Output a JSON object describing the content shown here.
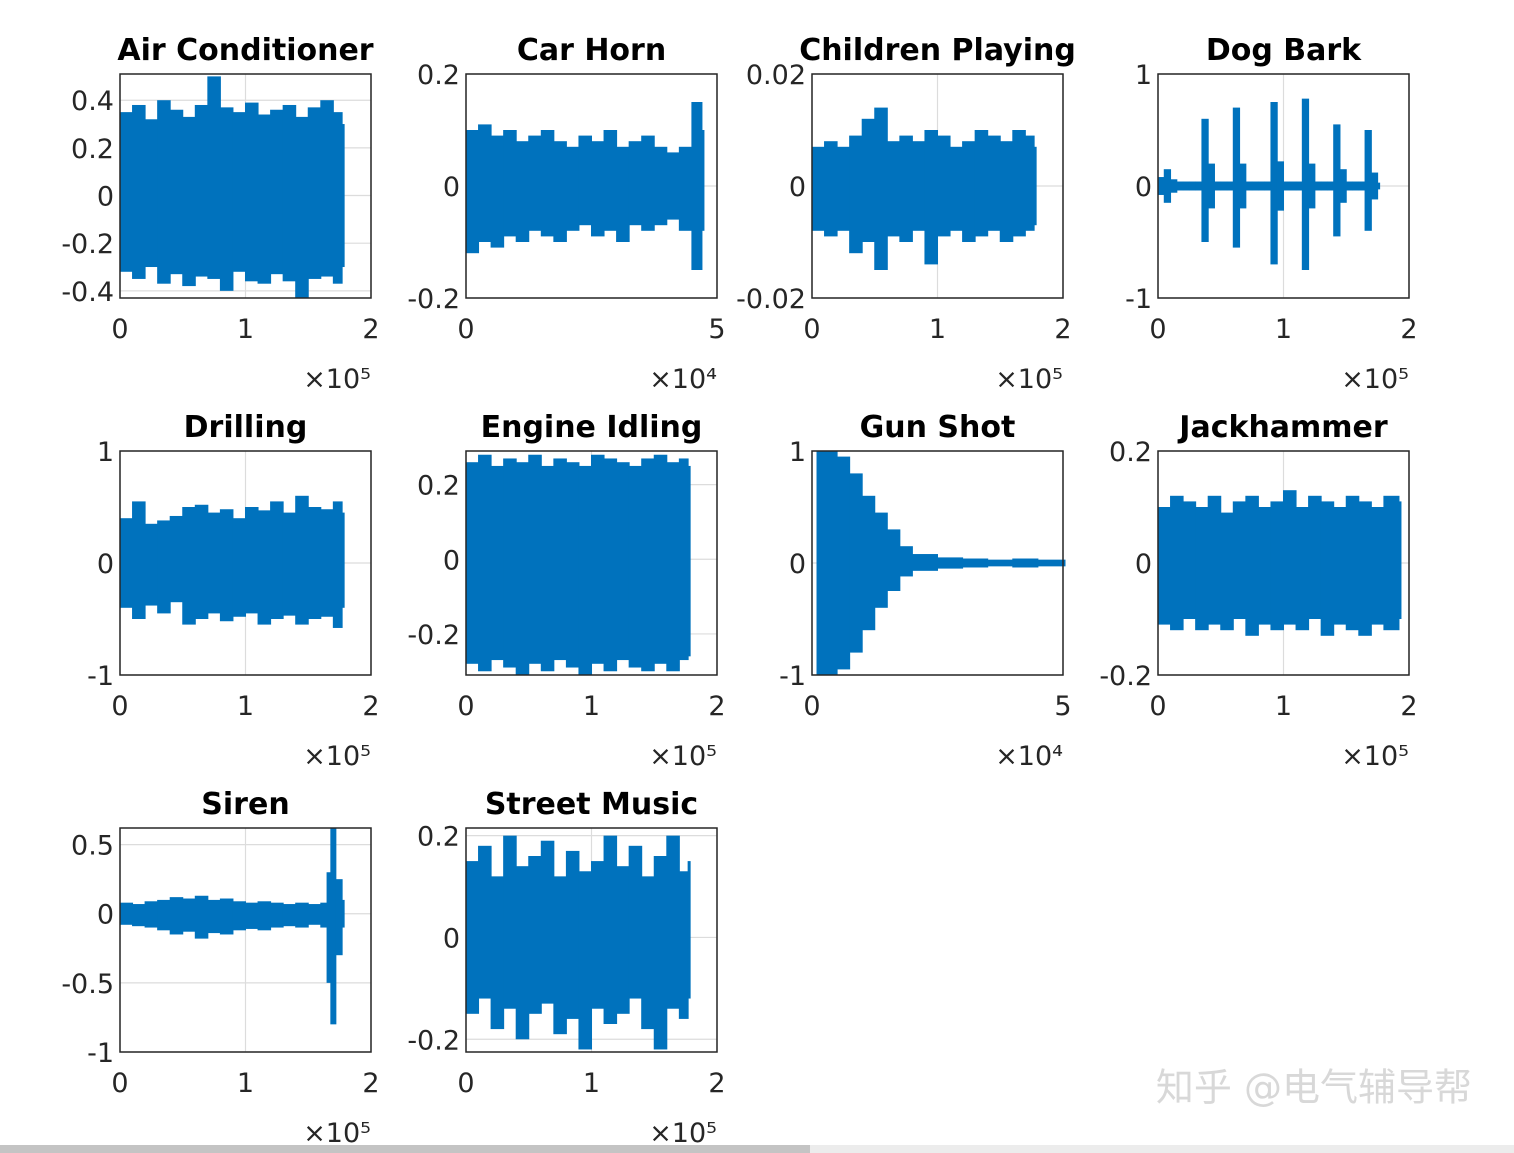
{
  "chart_data": [
    {
      "type": "waveform",
      "title": "Air Conditioner",
      "color": "#0072bd",
      "grid": true,
      "x_multiplier": "×10⁵",
      "xlim": [
        0,
        2
      ],
      "xticks": [
        0,
        1,
        2
      ],
      "ylim": [
        -0.43,
        0.51
      ],
      "yticks": [
        -0.4,
        -0.2,
        0,
        0.2,
        0.4
      ],
      "x": [
        0,
        0.1,
        0.2,
        0.3,
        0.4,
        0.5,
        0.6,
        0.7,
        0.8,
        0.9,
        1,
        1.1,
        1.2,
        1.3,
        1.4,
        1.5,
        1.6,
        1.7,
        1.77
      ],
      "series": [
        {
          "color": "#0072bd",
          "values": [
            0.35,
            0.38,
            0.32,
            0.4,
            0.36,
            0.33,
            0.38,
            0.5,
            0.37,
            0.35,
            0.39,
            0.34,
            0.36,
            0.38,
            0.33,
            0.37,
            0.4,
            0.35,
            0.3
          ]
        },
        {
          "color": "#0072bd",
          "values": [
            -0.32,
            -0.35,
            -0.3,
            -0.37,
            -0.33,
            -0.38,
            -0.34,
            -0.35,
            -0.4,
            -0.32,
            -0.36,
            -0.37,
            -0.33,
            -0.36,
            -0.43,
            -0.35,
            -0.34,
            -0.37,
            -0.3
          ]
        }
      ]
    },
    {
      "type": "waveform",
      "title": "Car Horn",
      "color": "#0072bd",
      "grid": true,
      "x_multiplier": "×10⁴",
      "xlim": [
        0,
        5
      ],
      "xticks": [
        0,
        5
      ],
      "ylim": [
        -0.2,
        0.2
      ],
      "yticks": [
        -0.2,
        0,
        0.2
      ],
      "x": [
        0,
        0.25,
        0.5,
        0.75,
        1,
        1.25,
        1.5,
        1.75,
        2,
        2.25,
        2.5,
        2.75,
        3,
        3.25,
        3.5,
        3.75,
        4,
        4.25,
        4.5,
        4.7
      ],
      "series": [
        {
          "color": "#0072bd",
          "values": [
            0.1,
            0.11,
            0.09,
            0.1,
            0.08,
            0.09,
            0.1,
            0.08,
            0.07,
            0.09,
            0.08,
            0.1,
            0.07,
            0.08,
            0.09,
            0.07,
            0.06,
            0.07,
            0.15,
            0.1
          ]
        },
        {
          "color": "#0072bd",
          "values": [
            -0.12,
            -0.1,
            -0.11,
            -0.09,
            -0.1,
            -0.08,
            -0.09,
            -0.1,
            -0.08,
            -0.07,
            -0.09,
            -0.08,
            -0.1,
            -0.07,
            -0.08,
            -0.07,
            -0.06,
            -0.08,
            -0.15,
            -0.08
          ]
        }
      ]
    },
    {
      "type": "waveform",
      "title": "Children Playing",
      "color": "#0072bd",
      "grid": true,
      "x_multiplier": "×10⁵",
      "xlim": [
        0,
        2
      ],
      "xticks": [
        0,
        1,
        2
      ],
      "ylim": [
        -0.02,
        0.02
      ],
      "yticks": [
        -0.02,
        0,
        0.02
      ],
      "x": [
        0,
        0.1,
        0.2,
        0.3,
        0.4,
        0.5,
        0.6,
        0.7,
        0.8,
        0.9,
        1,
        1.1,
        1.2,
        1.3,
        1.4,
        1.5,
        1.6,
        1.7,
        1.77
      ],
      "series": [
        {
          "color": "#0072bd",
          "values": [
            0.007,
            0.008,
            0.007,
            0.009,
            0.012,
            0.014,
            0.008,
            0.009,
            0.008,
            0.01,
            0.009,
            0.007,
            0.008,
            0.01,
            0.009,
            0.008,
            0.01,
            0.009,
            0.007
          ]
        },
        {
          "color": "#0072bd",
          "values": [
            -0.008,
            -0.009,
            -0.008,
            -0.012,
            -0.01,
            -0.015,
            -0.009,
            -0.01,
            -0.008,
            -0.014,
            -0.009,
            -0.008,
            -0.01,
            -0.009,
            -0.008,
            -0.01,
            -0.009,
            -0.008,
            -0.007
          ]
        }
      ]
    },
    {
      "type": "waveform",
      "title": "Dog Bark",
      "color": "#0072bd",
      "grid": true,
      "x_multiplier": "×10⁵",
      "xlim": [
        0,
        2
      ],
      "xticks": [
        0,
        1,
        2
      ],
      "ylim": [
        -1,
        1
      ],
      "yticks": [
        -1,
        0,
        1
      ],
      "x": [
        0,
        0.05,
        0.1,
        0.15,
        0.2,
        0.25,
        0.3,
        0.35,
        0.4,
        0.45,
        0.5,
        0.55,
        0.6,
        0.65,
        0.7,
        0.75,
        0.8,
        0.85,
        0.9,
        0.95,
        1,
        1.05,
        1.1,
        1.15,
        1.2,
        1.25,
        1.3,
        1.35,
        1.4,
        1.45,
        1.5,
        1.55,
        1.6,
        1.65,
        1.7,
        1.75
      ],
      "series": [
        {
          "color": "#0072bd",
          "values": [
            0.08,
            0.15,
            0.06,
            0.04,
            0.04,
            0.04,
            0.04,
            0.6,
            0.2,
            0.04,
            0.04,
            0.04,
            0.7,
            0.2,
            0.04,
            0.04,
            0.04,
            0.04,
            0.75,
            0.22,
            0.04,
            0.04,
            0.04,
            0.78,
            0.2,
            0.04,
            0.04,
            0.04,
            0.55,
            0.15,
            0.04,
            0.04,
            0.04,
            0.5,
            0.12,
            0.03
          ]
        },
        {
          "color": "#0072bd",
          "values": [
            -0.08,
            -0.15,
            -0.06,
            -0.04,
            -0.04,
            -0.04,
            -0.04,
            -0.5,
            -0.2,
            -0.04,
            -0.04,
            -0.04,
            -0.55,
            -0.2,
            -0.04,
            -0.04,
            -0.04,
            -0.04,
            -0.7,
            -0.22,
            -0.04,
            -0.04,
            -0.04,
            -0.75,
            -0.2,
            -0.04,
            -0.04,
            -0.04,
            -0.45,
            -0.15,
            -0.04,
            -0.04,
            -0.04,
            -0.4,
            -0.12,
            -0.03
          ]
        }
      ]
    },
    {
      "type": "waveform",
      "title": "Drilling",
      "color": "#0072bd",
      "grid": true,
      "x_multiplier": "×10⁵",
      "xlim": [
        0,
        2
      ],
      "xticks": [
        0,
        1,
        2
      ],
      "ylim": [
        -1,
        1
      ],
      "yticks": [
        -1,
        0,
        1
      ],
      "x": [
        0,
        0.1,
        0.2,
        0.3,
        0.4,
        0.5,
        0.6,
        0.7,
        0.8,
        0.9,
        1,
        1.1,
        1.2,
        1.3,
        1.4,
        1.5,
        1.6,
        1.7,
        1.77
      ],
      "series": [
        {
          "color": "#0072bd",
          "values": [
            0.4,
            0.55,
            0.35,
            0.38,
            0.42,
            0.5,
            0.52,
            0.45,
            0.48,
            0.4,
            0.5,
            0.47,
            0.55,
            0.45,
            0.6,
            0.5,
            0.48,
            0.55,
            0.45
          ]
        },
        {
          "color": "#0072bd",
          "values": [
            -0.4,
            -0.5,
            -0.38,
            -0.45,
            -0.35,
            -0.55,
            -0.5,
            -0.45,
            -0.52,
            -0.48,
            -0.45,
            -0.55,
            -0.5,
            -0.47,
            -0.55,
            -0.5,
            -0.48,
            -0.58,
            -0.4
          ]
        }
      ]
    },
    {
      "type": "waveform",
      "title": "Engine Idling",
      "color": "#0072bd",
      "grid": true,
      "x_multiplier": "×10⁵",
      "xlim": [
        0,
        2
      ],
      "xticks": [
        0,
        1,
        2
      ],
      "ylim": [
        -0.31,
        0.29
      ],
      "yticks": [
        -0.2,
        0,
        0.2
      ],
      "x": [
        0,
        0.1,
        0.2,
        0.3,
        0.4,
        0.5,
        0.6,
        0.7,
        0.8,
        0.9,
        1,
        1.1,
        1.2,
        1.3,
        1.4,
        1.5,
        1.6,
        1.7,
        1.77
      ],
      "series": [
        {
          "color": "#0072bd",
          "values": [
            0.26,
            0.28,
            0.25,
            0.27,
            0.26,
            0.28,
            0.25,
            0.27,
            0.26,
            0.25,
            0.28,
            0.27,
            0.26,
            0.25,
            0.27,
            0.28,
            0.26,
            0.27,
            0.25
          ]
        },
        {
          "color": "#0072bd",
          "values": [
            -0.28,
            -0.3,
            -0.27,
            -0.29,
            -0.31,
            -0.28,
            -0.3,
            -0.27,
            -0.29,
            -0.31,
            -0.28,
            -0.3,
            -0.27,
            -0.29,
            -0.3,
            -0.28,
            -0.3,
            -0.27,
            -0.26
          ]
        }
      ]
    },
    {
      "type": "waveform",
      "title": "Gun Shot",
      "color": "#0072bd",
      "grid": true,
      "x_multiplier": "×10⁴",
      "xlim": [
        0,
        5
      ],
      "xticks": [
        0,
        5
      ],
      "ylim": [
        -1,
        1
      ],
      "yticks": [
        -1,
        0,
        1
      ],
      "x": [
        0.1,
        0.25,
        0.5,
        0.75,
        1,
        1.25,
        1.5,
        1.75,
        2,
        2.5,
        3,
        3.5,
        4,
        4.5,
        5
      ],
      "series": [
        {
          "color": "#0072bd",
          "values": [
            1,
            1,
            0.95,
            0.8,
            0.6,
            0.45,
            0.3,
            0.15,
            0.08,
            0.05,
            0.04,
            0.03,
            0.04,
            0.03,
            0.03
          ]
        },
        {
          "color": "#0072bd",
          "values": [
            -1,
            -1,
            -0.95,
            -0.8,
            -0.6,
            -0.4,
            -0.25,
            -0.12,
            -0.07,
            -0.05,
            -0.04,
            -0.03,
            -0.04,
            -0.03,
            -0.03
          ]
        }
      ]
    },
    {
      "type": "waveform",
      "title": "Jackhammer",
      "color": "#0072bd",
      "grid": true,
      "x_multiplier": "×10⁵",
      "xlim": [
        0,
        2
      ],
      "xticks": [
        0,
        1,
        2
      ],
      "ylim": [
        -0.2,
        0.2
      ],
      "yticks": [
        -0.2,
        0,
        0.2
      ],
      "x": [
        0,
        0.1,
        0.2,
        0.3,
        0.4,
        0.5,
        0.6,
        0.7,
        0.8,
        0.9,
        1,
        1.1,
        1.2,
        1.3,
        1.4,
        1.5,
        1.6,
        1.7,
        1.8,
        1.92
      ],
      "series": [
        {
          "color": "#0072bd",
          "values": [
            0.1,
            0.12,
            0.11,
            0.1,
            0.12,
            0.09,
            0.11,
            0.12,
            0.1,
            0.11,
            0.13,
            0.1,
            0.12,
            0.11,
            0.1,
            0.12,
            0.11,
            0.1,
            0.12,
            0.11
          ]
        },
        {
          "color": "#0072bd",
          "values": [
            -0.11,
            -0.12,
            -0.1,
            -0.12,
            -0.11,
            -0.12,
            -0.1,
            -0.13,
            -0.11,
            -0.12,
            -0.11,
            -0.12,
            -0.1,
            -0.13,
            -0.11,
            -0.12,
            -0.13,
            -0.11,
            -0.12,
            -0.1
          ]
        }
      ]
    },
    {
      "type": "waveform",
      "title": "Siren",
      "color": "#0072bd",
      "grid": true,
      "x_multiplier": "×10⁵",
      "xlim": [
        0,
        2
      ],
      "xticks": [
        0,
        1,
        2
      ],
      "ylim": [
        -1,
        0.62
      ],
      "yticks": [
        -1,
        -0.5,
        0,
        0.5
      ],
      "x": [
        0,
        0.1,
        0.2,
        0.3,
        0.4,
        0.5,
        0.6,
        0.7,
        0.8,
        0.9,
        1,
        1.1,
        1.2,
        1.3,
        1.4,
        1.5,
        1.6,
        1.65,
        1.68,
        1.72,
        1.77
      ],
      "series": [
        {
          "color": "#0072bd",
          "values": [
            0.08,
            0.07,
            0.09,
            0.1,
            0.12,
            0.11,
            0.13,
            0.1,
            0.11,
            0.09,
            0.08,
            0.09,
            0.08,
            0.07,
            0.08,
            0.07,
            0.08,
            0.3,
            0.62,
            0.25,
            0.1
          ]
        },
        {
          "color": "#0072bd",
          "values": [
            -0.08,
            -0.09,
            -0.1,
            -0.12,
            -0.15,
            -0.13,
            -0.18,
            -0.14,
            -0.15,
            -0.12,
            -0.11,
            -0.12,
            -0.1,
            -0.09,
            -0.1,
            -0.08,
            -0.1,
            -0.5,
            -0.8,
            -0.3,
            -0.1
          ]
        }
      ]
    },
    {
      "type": "waveform",
      "title": "Street Music",
      "color": "#0072bd",
      "grid": true,
      "x_multiplier": "×10⁵",
      "xlim": [
        0,
        2
      ],
      "xticks": [
        0,
        1,
        2
      ],
      "ylim": [
        -0.225,
        0.215
      ],
      "yticks": [
        -0.2,
        0,
        0.2
      ],
      "x": [
        0,
        0.1,
        0.2,
        0.3,
        0.4,
        0.5,
        0.6,
        0.7,
        0.8,
        0.9,
        1,
        1.1,
        1.2,
        1.3,
        1.4,
        1.5,
        1.6,
        1.7,
        1.77
      ],
      "series": [
        {
          "color": "#0072bd",
          "values": [
            0.15,
            0.18,
            0.12,
            0.2,
            0.14,
            0.16,
            0.19,
            0.12,
            0.17,
            0.13,
            0.15,
            0.2,
            0.14,
            0.18,
            0.12,
            0.16,
            0.2,
            0.13,
            0.15
          ]
        },
        {
          "color": "#0072bd",
          "values": [
            -0.15,
            -0.12,
            -0.18,
            -0.14,
            -0.2,
            -0.15,
            -0.13,
            -0.19,
            -0.16,
            -0.22,
            -0.14,
            -0.17,
            -0.15,
            -0.12,
            -0.18,
            -0.22,
            -0.14,
            -0.16,
            -0.12
          ]
        }
      ]
    }
  ],
  "watermark": "知乎 @电气辅导帮"
}
